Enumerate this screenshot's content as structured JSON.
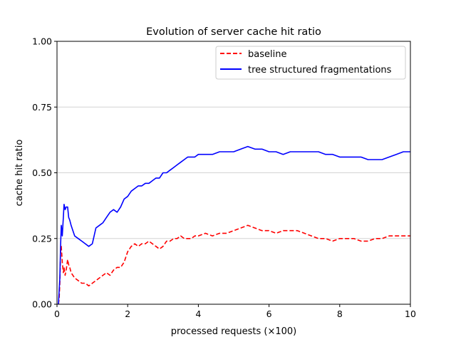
{
  "chart_data": {
    "type": "line",
    "title": "Evolution of server cache hit ratio",
    "xlabel": "processed requests (×100)",
    "ylabel": "cache hit ratio",
    "xlim": [
      0,
      10
    ],
    "ylim": [
      0,
      1
    ],
    "x_ticks": [
      0,
      2,
      4,
      6,
      8,
      10
    ],
    "x_tick_labels": [
      "0",
      "2",
      "4",
      "6",
      "8",
      "10"
    ],
    "y_ticks": [
      0,
      0.25,
      0.5,
      0.75,
      1.0
    ],
    "y_tick_labels": [
      "0.00",
      "0.25",
      "0.50",
      "0.75",
      "1.00"
    ],
    "grid": "horizontal",
    "legend_position": "top-right",
    "series": [
      {
        "name": "baseline",
        "color": "#ff0000",
        "style": "dashed",
        "x": [
          0.04,
          0.06,
          0.08,
          0.1,
          0.12,
          0.15,
          0.18,
          0.2,
          0.23,
          0.26,
          0.3,
          0.33,
          0.36,
          0.4,
          0.45,
          0.5,
          0.6,
          0.7,
          0.8,
          0.9,
          1.0,
          1.1,
          1.2,
          1.3,
          1.4,
          1.5,
          1.6,
          1.7,
          1.8,
          1.9,
          2.0,
          2.1,
          2.2,
          2.3,
          2.4,
          2.5,
          2.6,
          2.7,
          2.8,
          2.9,
          3.0,
          3.1,
          3.2,
          3.3,
          3.4,
          3.5,
          3.6,
          3.7,
          3.8,
          3.9,
          4.0,
          4.2,
          4.4,
          4.6,
          4.8,
          5.0,
          5.2,
          5.4,
          5.6,
          5.8,
          6.0,
          6.2,
          6.4,
          6.6,
          6.8,
          7.0,
          7.2,
          7.4,
          7.6,
          7.8,
          8.0,
          8.2,
          8.4,
          8.6,
          8.8,
          9.0,
          9.2,
          9.4,
          9.6,
          9.8,
          10.0
        ],
        "y": [
          0.0,
          0.02,
          0.08,
          0.2,
          0.22,
          0.16,
          0.12,
          0.14,
          0.11,
          0.13,
          0.17,
          0.15,
          0.14,
          0.12,
          0.11,
          0.1,
          0.09,
          0.08,
          0.08,
          0.07,
          0.08,
          0.09,
          0.1,
          0.11,
          0.12,
          0.11,
          0.13,
          0.14,
          0.14,
          0.16,
          0.2,
          0.22,
          0.23,
          0.22,
          0.23,
          0.23,
          0.24,
          0.23,
          0.22,
          0.21,
          0.22,
          0.24,
          0.24,
          0.25,
          0.25,
          0.26,
          0.25,
          0.25,
          0.25,
          0.26,
          0.26,
          0.27,
          0.26,
          0.27,
          0.27,
          0.28,
          0.29,
          0.3,
          0.29,
          0.28,
          0.28,
          0.27,
          0.28,
          0.28,
          0.28,
          0.27,
          0.26,
          0.25,
          0.25,
          0.24,
          0.25,
          0.25,
          0.25,
          0.24,
          0.24,
          0.25,
          0.25,
          0.26,
          0.26,
          0.26,
          0.26
        ]
      },
      {
        "name": "tree structured fragmentations",
        "color": "#0000ff",
        "style": "solid",
        "x": [
          0.04,
          0.06,
          0.08,
          0.1,
          0.12,
          0.15,
          0.18,
          0.2,
          0.23,
          0.26,
          0.3,
          0.33,
          0.36,
          0.4,
          0.45,
          0.5,
          0.6,
          0.7,
          0.8,
          0.9,
          1.0,
          1.1,
          1.2,
          1.3,
          1.4,
          1.5,
          1.6,
          1.7,
          1.8,
          1.9,
          2.0,
          2.1,
          2.2,
          2.3,
          2.4,
          2.5,
          2.6,
          2.7,
          2.8,
          2.9,
          3.0,
          3.1,
          3.2,
          3.3,
          3.4,
          3.5,
          3.6,
          3.7,
          3.8,
          3.9,
          4.0,
          4.2,
          4.4,
          4.6,
          4.8,
          5.0,
          5.2,
          5.4,
          5.6,
          5.8,
          6.0,
          6.2,
          6.4,
          6.6,
          6.8,
          7.0,
          7.2,
          7.4,
          7.6,
          7.8,
          8.0,
          8.2,
          8.4,
          8.6,
          8.8,
          9.0,
          9.2,
          9.4,
          9.6,
          9.8,
          10.0
        ],
        "y": [
          0.0,
          0.05,
          0.1,
          0.22,
          0.3,
          0.26,
          0.33,
          0.38,
          0.36,
          0.37,
          0.37,
          0.33,
          0.32,
          0.3,
          0.28,
          0.26,
          0.25,
          0.24,
          0.23,
          0.22,
          0.23,
          0.29,
          0.3,
          0.31,
          0.33,
          0.35,
          0.36,
          0.35,
          0.37,
          0.4,
          0.41,
          0.43,
          0.44,
          0.45,
          0.45,
          0.46,
          0.46,
          0.47,
          0.48,
          0.48,
          0.5,
          0.5,
          0.51,
          0.52,
          0.53,
          0.54,
          0.55,
          0.56,
          0.56,
          0.56,
          0.57,
          0.57,
          0.57,
          0.58,
          0.58,
          0.58,
          0.59,
          0.6,
          0.59,
          0.59,
          0.58,
          0.58,
          0.57,
          0.58,
          0.58,
          0.58,
          0.58,
          0.58,
          0.57,
          0.57,
          0.56,
          0.56,
          0.56,
          0.56,
          0.55,
          0.55,
          0.55,
          0.56,
          0.57,
          0.58,
          0.58
        ]
      }
    ]
  }
}
